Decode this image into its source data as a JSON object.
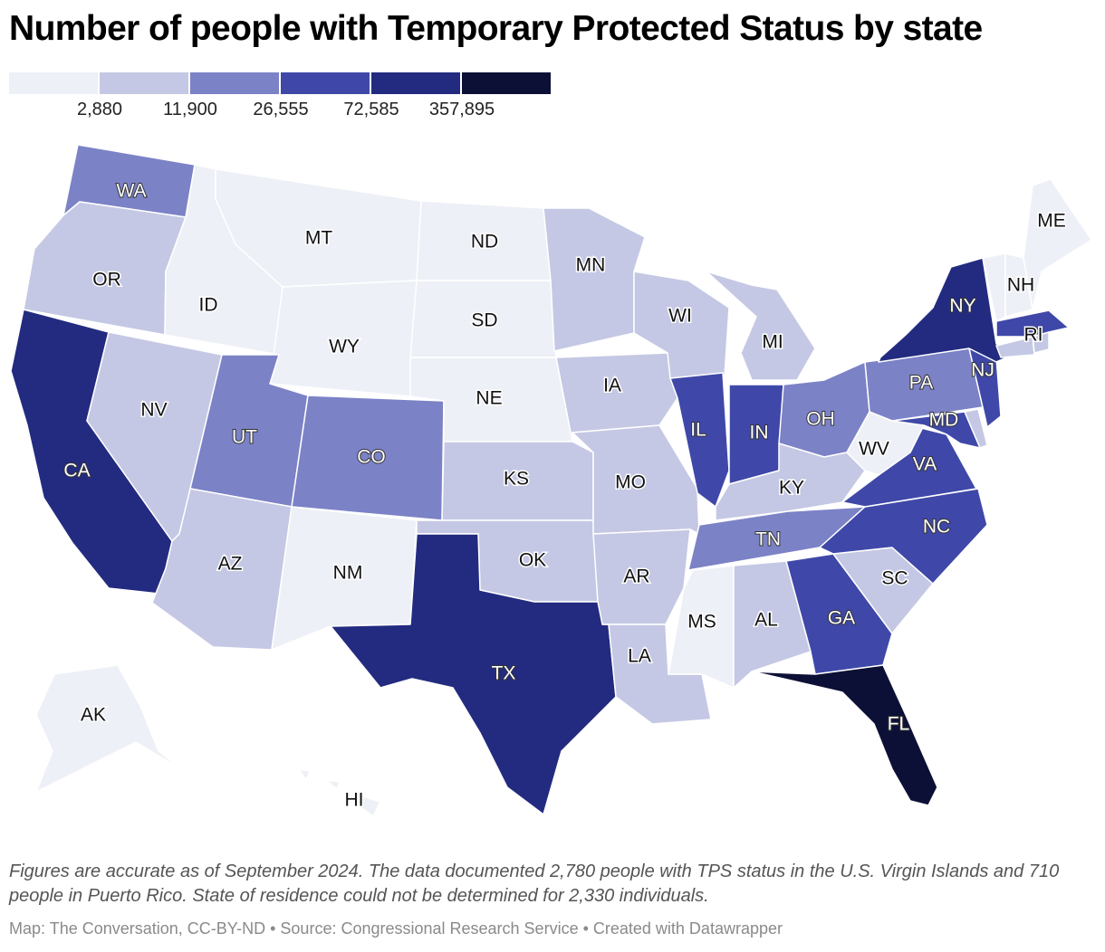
{
  "title": "Number of people with Temporary Protected Status by state",
  "legend": {
    "colors": [
      "#eef0f7",
      "#c5c8e4",
      "#7b82c6",
      "#3f48a8",
      "#232b80",
      "#0d1036"
    ],
    "ticks": [
      "2,880",
      "11,900",
      "26,555",
      "72,585",
      "357,895"
    ]
  },
  "states": {
    "WA": {
      "label": "WA",
      "bin": 2
    },
    "OR": {
      "label": "OR",
      "bin": 1
    },
    "CA": {
      "label": "CA",
      "bin": 4
    },
    "ID": {
      "label": "ID",
      "bin": 0
    },
    "NV": {
      "label": "NV",
      "bin": 1
    },
    "MT": {
      "label": "MT",
      "bin": 0
    },
    "WY": {
      "label": "WY",
      "bin": 0
    },
    "UT": {
      "label": "UT",
      "bin": 2
    },
    "AZ": {
      "label": "AZ",
      "bin": 1
    },
    "CO": {
      "label": "CO",
      "bin": 2
    },
    "NM": {
      "label": "NM",
      "bin": 0
    },
    "ND": {
      "label": "ND",
      "bin": 0
    },
    "SD": {
      "label": "SD",
      "bin": 0
    },
    "NE": {
      "label": "NE",
      "bin": 0
    },
    "KS": {
      "label": "KS",
      "bin": 1
    },
    "OK": {
      "label": "OK",
      "bin": 1
    },
    "TX": {
      "label": "TX",
      "bin": 4
    },
    "MN": {
      "label": "MN",
      "bin": 1
    },
    "IA": {
      "label": "IA",
      "bin": 1
    },
    "MO": {
      "label": "MO",
      "bin": 1
    },
    "AR": {
      "label": "AR",
      "bin": 1
    },
    "LA": {
      "label": "LA",
      "bin": 1
    },
    "WI": {
      "label": "WI",
      "bin": 1
    },
    "IL": {
      "label": "IL",
      "bin": 3
    },
    "MI": {
      "label": "MI",
      "bin": 1
    },
    "IN": {
      "label": "IN",
      "bin": 3
    },
    "OH": {
      "label": "OH",
      "bin": 2
    },
    "KY": {
      "label": "KY",
      "bin": 1
    },
    "TN": {
      "label": "TN",
      "bin": 2
    },
    "MS": {
      "label": "MS",
      "bin": 0
    },
    "AL": {
      "label": "AL",
      "bin": 1
    },
    "GA": {
      "label": "GA",
      "bin": 3
    },
    "FL": {
      "label": "FL",
      "bin": 5
    },
    "SC": {
      "label": "SC",
      "bin": 1
    },
    "NC": {
      "label": "NC",
      "bin": 3
    },
    "VA": {
      "label": "VA",
      "bin": 3
    },
    "WV": {
      "label": "WV",
      "bin": 0
    },
    "MD": {
      "label": "MD",
      "bin": 3
    },
    "DE": {
      "label": "",
      "bin": 1
    },
    "PA": {
      "label": "PA",
      "bin": 2
    },
    "NJ": {
      "label": "NJ",
      "bin": 3
    },
    "NY": {
      "label": "NY",
      "bin": 4
    },
    "CT": {
      "label": "",
      "bin": 1
    },
    "RI": {
      "label": "RI",
      "bin": 1
    },
    "MA": {
      "label": "",
      "bin": 3
    },
    "VT": {
      "label": "",
      "bin": 0
    },
    "NH": {
      "label": "NH",
      "bin": 0
    },
    "ME": {
      "label": "ME",
      "bin": 0
    },
    "AK": {
      "label": "AK",
      "bin": 0
    },
    "HI": {
      "label": "HI",
      "bin": 0
    }
  },
  "footnote": "Figures are accurate as of September 2024. The data documented 2,780 people with TPS status in the U.S. Virgin Islands and 710 people in Puerto Rico. State of residence could not be determined for 2,330 individuals.",
  "credits": "Map: The Conversation, CC-BY-ND • Source: Congressional Research Service • Created with Datawrapper"
}
